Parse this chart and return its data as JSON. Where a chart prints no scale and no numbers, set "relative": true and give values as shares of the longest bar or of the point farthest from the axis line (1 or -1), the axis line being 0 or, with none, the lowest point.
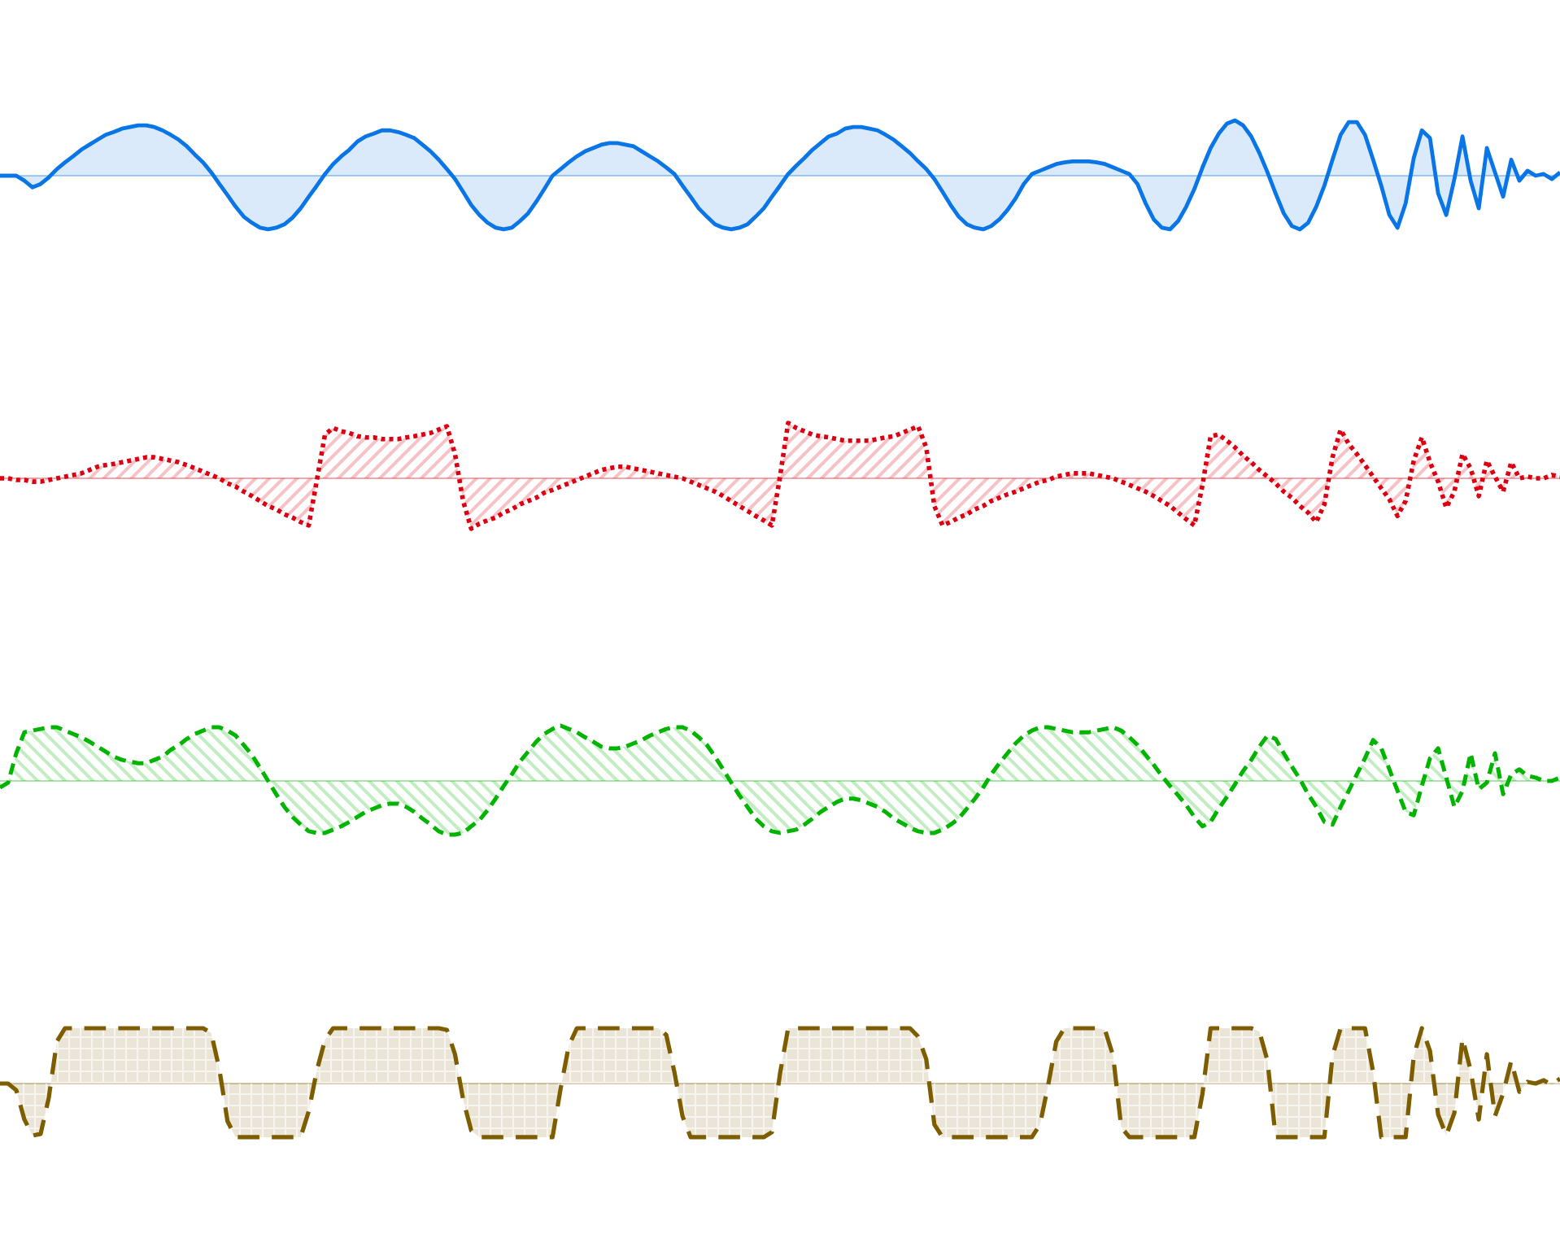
{
  "chart_data": [
    {
      "type": "area",
      "relative": true,
      "color": "#0a75e6",
      "line_style": "solid",
      "categories": [
        null,
        null,
        null,
        null,
        null,
        null,
        null,
        null,
        null,
        null,
        null,
        null,
        null,
        null,
        null,
        null,
        null,
        null,
        null,
        null,
        null,
        null,
        null,
        null,
        null,
        null,
        null,
        null,
        null,
        null,
        null,
        null,
        null,
        null,
        null,
        null,
        null,
        null,
        null,
        null,
        null,
        null,
        null,
        null,
        null,
        null,
        null,
        null,
        null,
        null,
        null,
        null,
        null,
        null,
        null,
        null,
        null,
        null,
        null,
        null,
        null,
        null,
        null,
        null,
        null,
        null,
        null,
        null,
        null,
        null,
        null,
        null,
        null,
        null,
        null,
        null,
        null,
        null,
        null,
        null,
        null,
        null,
        null,
        null,
        null,
        null,
        null,
        null,
        null,
        null,
        null,
        null,
        null,
        null,
        null,
        null,
        null,
        null,
        null,
        null,
        null,
        null,
        null,
        null,
        null,
        null,
        null,
        null,
        null,
        null,
        null,
        null,
        null,
        null,
        null,
        null,
        null,
        null,
        null,
        null,
        null,
        null,
        null,
        null,
        null,
        null,
        null,
        null,
        null,
        null,
        null,
        null,
        null,
        null,
        null,
        null,
        null,
        null,
        null,
        null,
        null,
        null,
        null,
        null,
        null,
        null,
        null,
        null,
        null,
        null,
        null,
        null,
        null,
        null,
        null,
        null,
        null,
        null,
        null,
        null,
        null,
        null,
        null,
        null,
        null,
        null,
        null,
        null,
        null,
        null,
        null,
        null,
        null,
        null,
        null,
        null,
        null,
        null,
        null,
        null,
        null,
        null,
        null,
        null,
        null,
        null,
        null,
        null,
        null,
        null,
        null,
        null,
        null
      ],
      "values": [
        0,
        0,
        0,
        -0.09,
        -0.21,
        -0.15,
        -0.03,
        0.12,
        0.24,
        0.35,
        0.47,
        0.56,
        0.65,
        0.74,
        0.79,
        0.85,
        0.88,
        0.91,
        0.91,
        0.88,
        0.82,
        0.74,
        0.65,
        0.53,
        0.38,
        0.24,
        0.06,
        -0.15,
        -0.35,
        -0.56,
        -0.74,
        -0.85,
        -0.94,
        -0.97,
        -0.94,
        -0.88,
        -0.76,
        -0.59,
        -0.38,
        -0.18,
        0.03,
        0.21,
        0.35,
        0.47,
        0.62,
        0.71,
        0.76,
        0.82,
        0.82,
        0.79,
        0.74,
        0.68,
        0.56,
        0.44,
        0.29,
        0.12,
        -0.06,
        -0.29,
        -0.53,
        -0.71,
        -0.85,
        -0.94,
        -0.97,
        -0.94,
        -0.82,
        -0.68,
        -0.47,
        -0.24,
        0,
        0.12,
        0.24,
        0.35,
        0.44,
        0.5,
        0.56,
        0.59,
        0.59,
        0.56,
        0.53,
        0.44,
        0.35,
        0.26,
        0.15,
        0.03,
        -0.18,
        -0.38,
        -0.59,
        -0.74,
        -0.88,
        -0.94,
        -0.97,
        -0.94,
        -0.88,
        -0.74,
        -0.59,
        -0.38,
        -0.18,
        0.03,
        0.18,
        0.32,
        0.47,
        0.59,
        0.71,
        0.76,
        0.85,
        0.88,
        0.88,
        0.85,
        0.82,
        0.74,
        0.65,
        0.53,
        0.41,
        0.26,
        0.12,
        -0.06,
        -0.29,
        -0.53,
        -0.74,
        -0.88,
        -0.94,
        -0.97,
        -0.91,
        -0.79,
        -0.62,
        -0.41,
        -0.15,
        0.03,
        0.09,
        0.15,
        0.21,
        0.24,
        0.26,
        0.26,
        0.26,
        0.24,
        0.21,
        0.15,
        0.09,
        0.03,
        -0.15,
        -0.5,
        -0.79,
        -0.94,
        -0.97,
        -0.82,
        -0.56,
        -0.24,
        0.15,
        0.5,
        0.76,
        0.94,
        1,
        0.91,
        0.71,
        0.41,
        0.06,
        -0.32,
        -0.68,
        -0.91,
        -0.97,
        -0.85,
        -0.56,
        -0.18,
        0.29,
        0.74,
        0.97,
        0.97,
        0.74,
        0.29,
        -0.18,
        -0.71,
        -0.94,
        -0.5,
        0.32,
        0.82,
        0.68,
        -0.32,
        -0.71,
        -0.06,
        0.71,
        -0.09,
        -0.59,
        0.5,
        0.06,
        -0.38,
        0.29,
        -0.09,
        0.09,
        0,
        0.03,
        -0.06,
        0.06
      ]
    },
    {
      "type": "area",
      "relative": true,
      "color": "#dd0011",
      "line_style": "dotted",
      "categories": [
        null,
        null,
        null,
        null,
        null,
        null,
        null,
        null,
        null,
        null,
        null,
        null,
        null,
        null,
        null,
        null,
        null,
        null,
        null,
        null,
        null,
        null,
        null,
        null,
        null,
        null,
        null,
        null,
        null,
        null,
        null,
        null,
        null,
        null,
        null,
        null,
        null,
        null,
        null,
        null,
        null,
        null,
        null,
        null,
        null,
        null,
        null,
        null,
        null,
        null,
        null,
        null,
        null,
        null,
        null,
        null,
        null,
        null,
        null,
        null,
        null,
        null,
        null,
        null,
        null,
        null,
        null,
        null,
        null,
        null,
        null,
        null,
        null,
        null,
        null,
        null,
        null,
        null,
        null,
        null,
        null,
        null,
        null,
        null,
        null,
        null,
        null,
        null,
        null,
        null,
        null,
        null,
        null,
        null,
        null,
        null,
        null,
        null,
        null,
        null,
        null,
        null,
        null,
        null,
        null,
        null,
        null,
        null,
        null,
        null,
        null,
        null,
        null,
        null,
        null,
        null,
        null,
        null,
        null,
        null,
        null,
        null,
        null,
        null,
        null,
        null,
        null,
        null,
        null,
        null,
        null,
        null,
        null,
        null,
        null,
        null,
        null,
        null,
        null,
        null,
        null,
        null,
        null,
        null,
        null,
        null,
        null,
        null,
        null,
        null,
        null,
        null,
        null,
        null,
        null,
        null,
        null,
        null,
        null,
        null,
        null,
        null,
        null,
        null,
        null,
        null,
        null,
        null,
        null,
        null,
        null,
        null,
        null,
        null,
        null,
        null,
        null,
        null,
        null,
        null,
        null,
        null,
        null,
        null,
        null,
        null,
        null,
        null,
        null,
        null,
        null,
        null,
        null
      ],
      "values": [
        0,
        0,
        -0.03,
        -0.03,
        -0.06,
        -0.06,
        -0.03,
        0,
        0.03,
        0.06,
        0.09,
        0.15,
        0.21,
        0.24,
        0.26,
        0.29,
        0.32,
        0.35,
        0.38,
        0.38,
        0.35,
        0.32,
        0.29,
        0.24,
        0.18,
        0.12,
        0.06,
        0,
        -0.09,
        -0.15,
        -0.24,
        -0.32,
        -0.41,
        -0.5,
        -0.56,
        -0.65,
        -0.71,
        -0.79,
        -0.85,
        -0.03,
        0.79,
        0.91,
        0.85,
        0.82,
        0.76,
        0.74,
        0.74,
        0.71,
        0.71,
        0.71,
        0.74,
        0.76,
        0.79,
        0.82,
        0.88,
        0.94,
        0.44,
        -0.41,
        -0.91,
        -0.82,
        -0.76,
        -0.71,
        -0.62,
        -0.56,
        -0.47,
        -0.41,
        -0.35,
        -0.26,
        -0.21,
        -0.15,
        -0.09,
        -0.03,
        0.03,
        0.09,
        0.15,
        0.18,
        0.21,
        0.21,
        0.18,
        0.15,
        0.12,
        0.09,
        0.06,
        0.03,
        0,
        -0.06,
        -0.12,
        -0.18,
        -0.24,
        -0.32,
        -0.41,
        -0.5,
        -0.59,
        -0.68,
        -0.76,
        -0.85,
        0.03,
        1,
        0.91,
        0.85,
        0.79,
        0.76,
        0.74,
        0.71,
        0.68,
        0.68,
        0.68,
        0.68,
        0.71,
        0.74,
        0.76,
        0.82,
        0.88,
        0.94,
        0.56,
        -0.5,
        -0.85,
        -0.79,
        -0.71,
        -0.65,
        -0.56,
        -0.5,
        -0.41,
        -0.35,
        -0.29,
        -0.24,
        -0.18,
        -0.12,
        -0.06,
        -0.03,
        0.03,
        0.06,
        0.09,
        0.09,
        0.09,
        0.06,
        0.03,
        0,
        -0.06,
        -0.12,
        -0.18,
        -0.24,
        -0.32,
        -0.41,
        -0.5,
        -0.62,
        -0.74,
        -0.85,
        -0.12,
        0.76,
        0.79,
        0.68,
        0.56,
        0.41,
        0.29,
        0.15,
        0.03,
        -0.09,
        -0.24,
        -0.35,
        -0.5,
        -0.62,
        -0.79,
        -0.47,
        0.38,
        0.88,
        0.62,
        0.44,
        0.24,
        0.03,
        -0.18,
        -0.38,
        -0.68,
        -0.41,
        0.32,
        0.74,
        0.29,
        -0.06,
        -0.53,
        -0.24,
        0.44,
        0.18,
        -0.32,
        0.32,
        0.03,
        -0.24,
        0.29,
        0,
        0.03,
        0,
        0,
        0.06,
        0.03
      ]
    },
    {
      "type": "area",
      "relative": true,
      "color": "#00b400",
      "line_style": "dashed",
      "categories": [
        null,
        null,
        null,
        null,
        null,
        null,
        null,
        null,
        null,
        null,
        null,
        null,
        null,
        null,
        null,
        null,
        null,
        null,
        null,
        null,
        null,
        null,
        null,
        null,
        null,
        null,
        null,
        null,
        null,
        null,
        null,
        null,
        null,
        null,
        null,
        null,
        null,
        null,
        null,
        null,
        null,
        null,
        null,
        null,
        null,
        null,
        null,
        null,
        null,
        null,
        null,
        null,
        null,
        null,
        null,
        null,
        null,
        null,
        null,
        null,
        null,
        null,
        null,
        null,
        null,
        null,
        null,
        null,
        null,
        null,
        null,
        null,
        null,
        null,
        null,
        null,
        null,
        null,
        null,
        null,
        null,
        null,
        null,
        null,
        null,
        null,
        null,
        null,
        null,
        null,
        null,
        null,
        null,
        null,
        null,
        null,
        null,
        null,
        null,
        null,
        null,
        null,
        null,
        null,
        null,
        null,
        null,
        null,
        null,
        null,
        null,
        null,
        null,
        null,
        null,
        null,
        null,
        null,
        null,
        null,
        null,
        null,
        null,
        null,
        null,
        null,
        null,
        null,
        null,
        null,
        null,
        null,
        null,
        null,
        null,
        null,
        null,
        null,
        null,
        null,
        null,
        null,
        null,
        null,
        null,
        null,
        null,
        null,
        null,
        null,
        null,
        null,
        null,
        null,
        null,
        null,
        null,
        null,
        null,
        null,
        null,
        null,
        null,
        null,
        null,
        null,
        null,
        null,
        null,
        null,
        null,
        null,
        null,
        null,
        null,
        null,
        null,
        null,
        null,
        null,
        null,
        null,
        null,
        null,
        null,
        null,
        null,
        null,
        null,
        null,
        null,
        null,
        null
      ],
      "values": [
        -0.12,
        -0.03,
        0.5,
        0.88,
        0.91,
        0.94,
        0.97,
        0.97,
        0.91,
        0.85,
        0.79,
        0.71,
        0.62,
        0.53,
        0.44,
        0.38,
        0.35,
        0.32,
        0.32,
        0.38,
        0.44,
        0.56,
        0.65,
        0.76,
        0.85,
        0.91,
        0.97,
        0.97,
        0.91,
        0.82,
        0.65,
        0.47,
        0.24,
        0,
        -0.24,
        -0.47,
        -0.65,
        -0.79,
        -0.91,
        -0.94,
        -0.94,
        -0.88,
        -0.82,
        -0.74,
        -0.65,
        -0.56,
        -0.5,
        -0.44,
        -0.41,
        -0.41,
        -0.47,
        -0.56,
        -0.68,
        -0.79,
        -0.91,
        -0.97,
        -0.97,
        -0.94,
        -0.82,
        -0.71,
        -0.53,
        -0.32,
        -0.09,
        0.12,
        0.35,
        0.53,
        0.71,
        0.85,
        0.94,
        1,
        0.94,
        0.88,
        0.79,
        0.71,
        0.62,
        0.59,
        0.59,
        0.62,
        0.68,
        0.74,
        0.82,
        0.88,
        0.94,
        0.97,
        0.97,
        0.91,
        0.79,
        0.65,
        0.44,
        0.21,
        -0.03,
        -0.26,
        -0.47,
        -0.68,
        -0.82,
        -0.91,
        -0.94,
        -0.91,
        -0.88,
        -0.79,
        -0.68,
        -0.56,
        -0.47,
        -0.38,
        -0.32,
        -0.32,
        -0.35,
        -0.41,
        -0.47,
        -0.56,
        -0.68,
        -0.76,
        -0.85,
        -0.91,
        -0.94,
        -0.94,
        -0.88,
        -0.79,
        -0.68,
        -0.5,
        -0.32,
        -0.12,
        0.12,
        0.32,
        0.5,
        0.68,
        0.82,
        0.91,
        0.97,
        0.97,
        0.94,
        0.91,
        0.88,
        0.88,
        0.88,
        0.91,
        0.94,
        0.97,
        0.91,
        0.79,
        0.65,
        0.47,
        0.29,
        0.09,
        -0.09,
        -0.26,
        -0.44,
        -0.65,
        -0.82,
        -0.74,
        -0.5,
        -0.29,
        -0.06,
        0.18,
        0.38,
        0.62,
        0.82,
        0.76,
        0.5,
        0.26,
        0.03,
        -0.24,
        -0.47,
        -0.74,
        -0.79,
        -0.47,
        -0.18,
        0.12,
        0.41,
        0.74,
        0.59,
        0.21,
        -0.18,
        -0.56,
        -0.62,
        -0.09,
        0.41,
        0.59,
        0.06,
        -0.47,
        -0.18,
        0.5,
        -0.15,
        -0.03,
        0.5,
        -0.24,
        0.12,
        0.21,
        0.09,
        0.06,
        0,
        0,
        0.06
      ]
    },
    {
      "type": "area",
      "relative": true,
      "color": "#7d5d00",
      "line_style": "dashed",
      "categories": [
        null,
        null,
        null,
        null,
        null,
        null,
        null,
        null,
        null,
        null,
        null,
        null,
        null,
        null,
        null,
        null,
        null,
        null,
        null,
        null,
        null,
        null,
        null,
        null,
        null,
        null,
        null,
        null,
        null,
        null,
        null,
        null,
        null,
        null,
        null,
        null,
        null,
        null,
        null,
        null,
        null,
        null,
        null,
        null,
        null,
        null,
        null,
        null,
        null,
        null,
        null,
        null,
        null,
        null,
        null,
        null,
        null,
        null,
        null,
        null,
        null,
        null,
        null,
        null,
        null,
        null,
        null,
        null,
        null,
        null,
        null,
        null,
        null,
        null,
        null,
        null,
        null,
        null,
        null,
        null,
        null,
        null,
        null,
        null,
        null,
        null,
        null,
        null,
        null,
        null,
        null,
        null,
        null,
        null,
        null,
        null,
        null,
        null,
        null,
        null,
        null,
        null,
        null,
        null,
        null,
        null,
        null,
        null,
        null,
        null,
        null,
        null,
        null,
        null,
        null,
        null,
        null,
        null,
        null,
        null,
        null,
        null,
        null,
        null,
        null,
        null,
        null,
        null,
        null,
        null,
        null,
        null,
        null,
        null,
        null,
        null,
        null,
        null,
        null,
        null,
        null,
        null,
        null,
        null,
        null,
        null,
        null,
        null,
        null,
        null,
        null,
        null,
        null,
        null,
        null,
        null,
        null,
        null,
        null,
        null,
        null,
        null,
        null,
        null,
        null,
        null,
        null,
        null,
        null,
        null,
        null,
        null,
        null,
        null,
        null,
        null,
        null,
        null,
        null,
        null,
        null,
        null,
        null,
        null,
        null,
        null,
        null,
        null,
        null,
        null,
        null,
        null,
        null
      ],
      "values": [
        0,
        0,
        -0.12,
        -0.65,
        -0.94,
        -0.91,
        -0.26,
        0.76,
        1,
        1,
        1,
        1,
        1,
        1,
        1,
        1,
        1,
        1,
        1,
        1,
        1,
        1,
        1,
        1,
        1,
        1,
        0.91,
        0.26,
        -0.68,
        -0.97,
        -0.97,
        -0.97,
        -0.97,
        -0.97,
        -0.97,
        -0.97,
        -0.97,
        -0.97,
        -0.5,
        0.24,
        0.79,
        1,
        1,
        1,
        1,
        1,
        1,
        1,
        1,
        1,
        1,
        1,
        1,
        1,
        1,
        0.97,
        0.53,
        -0.29,
        -0.85,
        -0.97,
        -0.97,
        -0.97,
        -0.97,
        -0.97,
        -0.97,
        -0.97,
        -0.97,
        -0.97,
        -0.97,
        -0.09,
        0.68,
        1,
        1,
        1,
        1,
        1,
        1,
        1,
        1,
        1,
        1,
        1,
        0.88,
        0.21,
        -0.59,
        -0.97,
        -0.97,
        -0.97,
        -0.97,
        -0.97,
        -0.97,
        -0.97,
        -0.97,
        -0.97,
        -0.97,
        -0.88,
        0.18,
        1,
        1,
        1,
        1,
        1,
        1,
        1,
        1,
        1,
        1,
        1,
        1,
        1,
        1,
        1,
        1,
        0.85,
        0.44,
        -0.74,
        -0.97,
        -0.97,
        -0.97,
        -0.97,
        -0.97,
        -0.97,
        -0.97,
        -0.97,
        -0.97,
        -0.97,
        -0.97,
        -0.97,
        -0.74,
        -0.03,
        0.76,
        1,
        1,
        1,
        1,
        1,
        0.97,
        0.5,
        -0.79,
        -0.97,
        -0.97,
        -0.97,
        -0.97,
        -0.97,
        -0.97,
        -0.97,
        -0.97,
        -0.97,
        -0.18,
        1,
        1,
        1,
        1,
        1,
        1,
        0.94,
        0.41,
        -0.97,
        -0.97,
        -0.97,
        -0.97,
        -0.97,
        -0.97,
        -0.97,
        0.5,
        1,
        1,
        1,
        1,
        0.21,
        -0.97,
        -0.97,
        -0.97,
        -0.97,
        0.5,
        1,
        0.59,
        -0.56,
        -0.94,
        -0.53,
        0.82,
        0.24,
        -0.65,
        0.53,
        -0.59,
        -0.18,
        0.41,
        -0.15,
        0.03,
        0,
        0.06,
        -0.03,
        0.09
      ]
    }
  ]
}
